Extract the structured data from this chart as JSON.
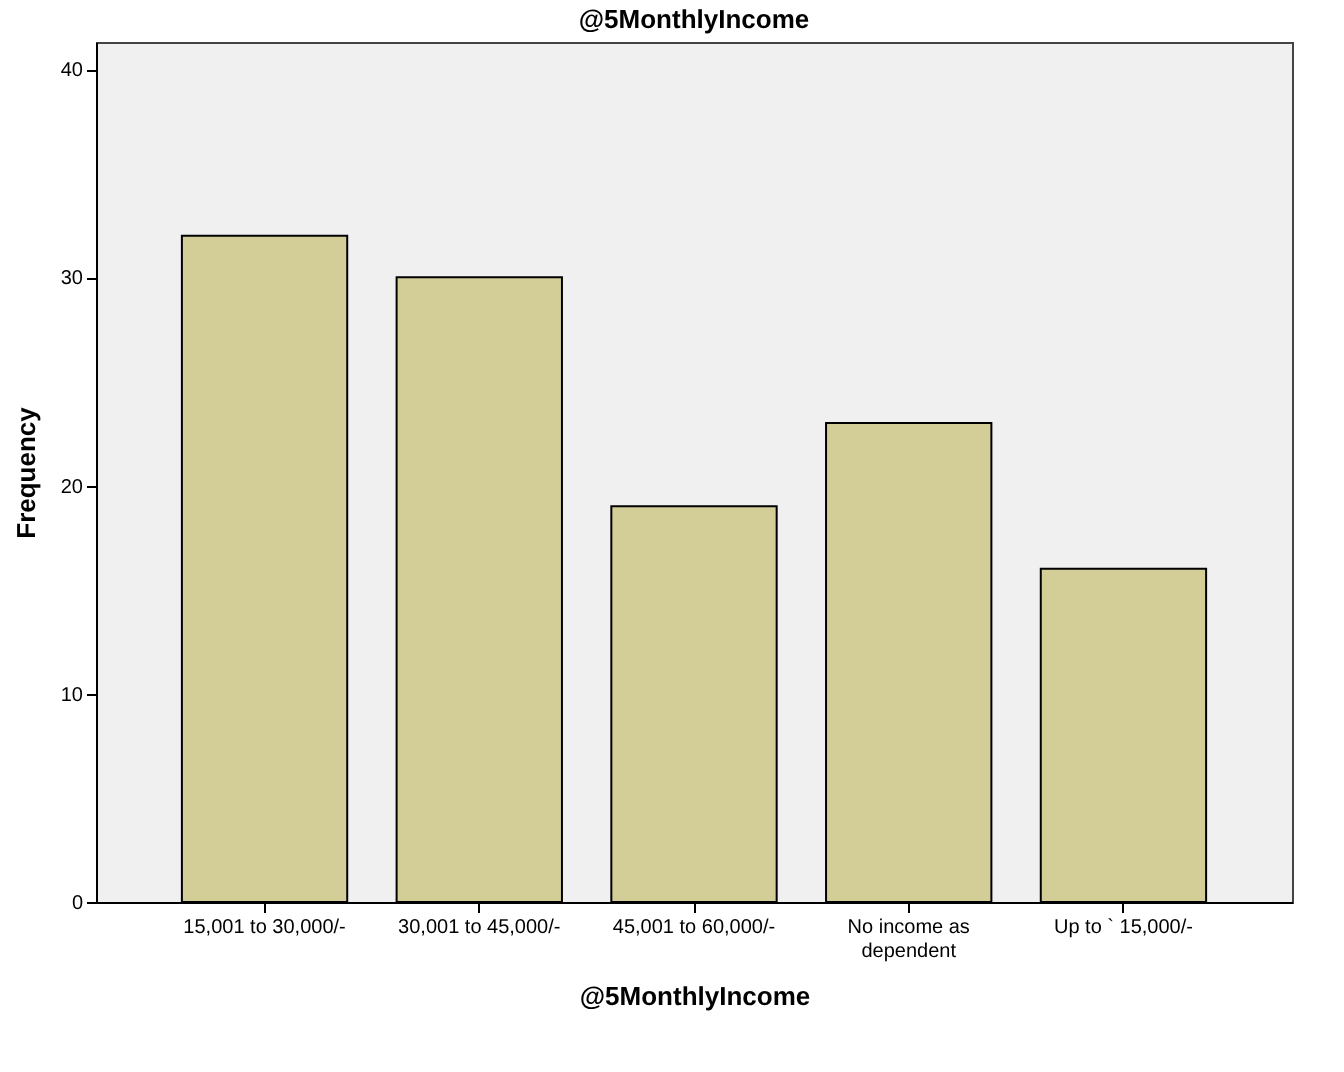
{
  "chart_data": {
    "type": "bar",
    "title": "@5MonthlyIncome",
    "xlabel": "@5MonthlyIncome",
    "ylabel": "Frequency",
    "categories": [
      "15,001 to 30,000/-",
      "30,001 to 45,000/-",
      "45,001 to 60,000/-",
      "No income as dependent",
      "Up to ` 15,000/-"
    ],
    "values": [
      32,
      30,
      19,
      23,
      16
    ],
    "color": "#d3ce97",
    "ylim": [
      0,
      41.3
    ],
    "yticks": [
      0,
      10,
      20,
      30,
      40
    ],
    "grid": false
  }
}
